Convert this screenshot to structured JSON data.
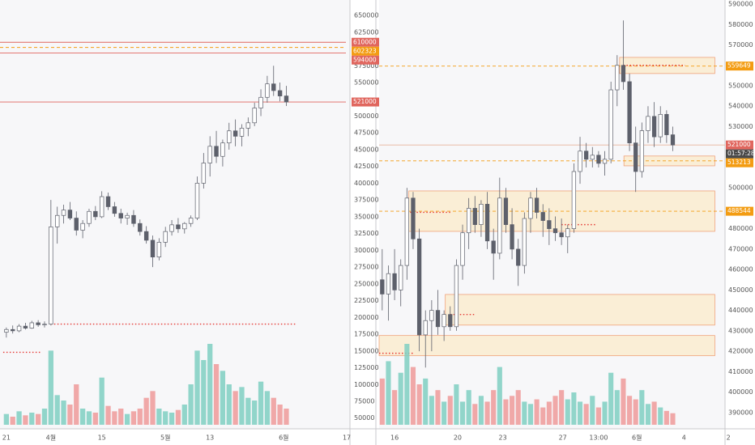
{
  "chart_data": [
    {
      "type": "candlestick",
      "x": [
        0,
        1,
        2,
        3,
        4,
        5,
        6,
        7,
        8,
        9,
        10,
        11,
        12,
        13,
        14,
        15,
        16,
        17,
        18,
        19,
        20,
        21,
        22,
        23,
        24,
        25,
        26,
        27,
        28,
        29,
        30,
        31,
        32,
        33,
        34,
        35,
        36,
        37,
        38,
        39,
        40,
        41,
        42,
        43,
        44
      ],
      "candles": [
        [
          178000,
          185000,
          170000,
          182000
        ],
        [
          182000,
          188000,
          176000,
          180000
        ],
        [
          180000,
          190000,
          178000,
          187000
        ],
        [
          187000,
          192000,
          182000,
          184000
        ],
        [
          184000,
          195000,
          183000,
          192000
        ],
        [
          192000,
          196000,
          186000,
          189000
        ],
        [
          189000,
          194000,
          185000,
          190000
        ],
        [
          190000,
          375000,
          188000,
          335000
        ],
        [
          335000,
          365000,
          310000,
          352000
        ],
        [
          352000,
          368000,
          340000,
          360000
        ],
        [
          360000,
          372000,
          345000,
          348000
        ],
        [
          348000,
          358000,
          322000,
          330000
        ],
        [
          330000,
          345000,
          318000,
          340000
        ],
        [
          340000,
          362000,
          335000,
          358000
        ],
        [
          358000,
          366000,
          345000,
          350000
        ],
        [
          350000,
          388000,
          348000,
          380000
        ],
        [
          380000,
          386000,
          360000,
          365000
        ],
        [
          365000,
          372000,
          350000,
          355000
        ],
        [
          355000,
          362000,
          340000,
          348000
        ],
        [
          348000,
          356000,
          338000,
          352000
        ],
        [
          352000,
          360000,
          335000,
          340000
        ],
        [
          340000,
          346000,
          322000,
          328000
        ],
        [
          328000,
          336000,
          310000,
          315000
        ],
        [
          315000,
          322000,
          275000,
          290000
        ],
        [
          290000,
          318000,
          285000,
          312000
        ],
        [
          312000,
          335000,
          305000,
          328000
        ],
        [
          328000,
          345000,
          322000,
          338000
        ],
        [
          338000,
          348000,
          326000,
          332000
        ],
        [
          332000,
          342000,
          325000,
          340000
        ],
        [
          340000,
          352000,
          335000,
          348000
        ],
        [
          348000,
          410000,
          345000,
          400000
        ],
        [
          400000,
          445000,
          392000,
          430000
        ],
        [
          430000,
          470000,
          410000,
          455000
        ],
        [
          455000,
          478000,
          430000,
          440000
        ],
        [
          440000,
          465000,
          425000,
          460000
        ],
        [
          460000,
          490000,
          450000,
          478000
        ],
        [
          478000,
          495000,
          455000,
          470000
        ],
        [
          470000,
          488000,
          455000,
          482000
        ],
        [
          482000,
          498000,
          470000,
          490000
        ],
        [
          490000,
          520000,
          485000,
          512000
        ],
        [
          512000,
          540000,
          500000,
          528000
        ],
        [
          528000,
          560000,
          520000,
          548000
        ],
        [
          548000,
          575000,
          530000,
          538000
        ],
        [
          538000,
          550000,
          522000,
          530000
        ],
        [
          530000,
          545000,
          515000,
          521000
        ]
      ],
      "volume": [
        8,
        6,
        10,
        7,
        9,
        8,
        12,
        55,
        22,
        18,
        15,
        30,
        12,
        10,
        9,
        35,
        14,
        10,
        12,
        8,
        10,
        12,
        20,
        25,
        12,
        10,
        9,
        11,
        15,
        30,
        55,
        48,
        60,
        45,
        40,
        30,
        25,
        28,
        20,
        18,
        32,
        25,
        20,
        15,
        12
      ],
      "xlim": [
        -1,
        54
      ],
      "ylim": [
        34000,
        673000
      ],
      "yticks": [
        650000,
        625000,
        575000,
        550000,
        500000,
        475000,
        450000,
        425000,
        400000,
        375000,
        350000,
        325000,
        300000,
        275000,
        250000,
        225000,
        200000,
        175000,
        150000,
        125000,
        100000,
        75000,
        50000
      ],
      "xticks": [
        {
          "value": 0,
          "label": "21"
        },
        {
          "value": 7,
          "label": "4월"
        },
        {
          "value": 15,
          "label": "15"
        },
        {
          "value": 25,
          "label": "5월"
        },
        {
          "value": 32,
          "label": "13"
        },
        {
          "value": 43.6,
          "label": "6월"
        },
        {
          "value": 53.5,
          "label": "17"
        }
      ],
      "price_tags": [
        {
          "value": 610000,
          "color": "#e0665e"
        },
        {
          "value": 602323,
          "color": "#f39c12"
        },
        {
          "value": 594000,
          "color": "#e0665e"
        },
        {
          "value": 521000,
          "color": "#e0665e"
        }
      ],
      "levels": [
        {
          "value": 610000,
          "color": "#e0665e",
          "style": "solid"
        },
        {
          "value": 602323,
          "color": "#f39c12",
          "style": "dashed"
        },
        {
          "value": 594000,
          "color": "#e0665e",
          "style": "solid"
        },
        {
          "value": 521000,
          "color": "#e0665e",
          "style": "solid"
        },
        {
          "value": 190000,
          "color": "#e53935",
          "style": "dotted",
          "from": 7,
          "to": 45.5
        },
        {
          "value": 148000,
          "color": "#e53935",
          "style": "dotted",
          "from": -0.5,
          "to": 5.5
        }
      ],
      "up_color": "#ffffff",
      "down_color": "#5d606b",
      "volume_up_color": "#7fcfc2",
      "volume_down_color": "#ef9a9a"
    },
    {
      "type": "candlestick",
      "x": [
        0,
        1,
        2,
        3,
        4,
        5,
        6,
        7,
        8,
        9,
        10,
        11,
        12,
        13,
        14,
        15,
        16,
        17,
        18,
        19,
        20,
        21,
        22,
        23,
        24,
        25,
        26,
        27,
        28,
        29,
        30,
        31,
        32,
        33,
        34,
        35,
        36,
        37,
        38,
        39,
        40,
        41,
        42,
        43,
        44,
        45,
        46,
        47
      ],
      "candles": [
        [
          455000,
          470000,
          440000,
          448000
        ],
        [
          448000,
          462000,
          435000,
          458000
        ],
        [
          458000,
          470000,
          445000,
          450000
        ],
        [
          450000,
          465000,
          442000,
          462000
        ],
        [
          462000,
          500000,
          455000,
          495000
        ],
        [
          495000,
          498000,
          470000,
          475000
        ],
        [
          475000,
          480000,
          420000,
          428000
        ],
        [
          428000,
          440000,
          412000,
          435000
        ],
        [
          435000,
          445000,
          420000,
          440000
        ],
        [
          440000,
          450000,
          428000,
          432000
        ],
        [
          432000,
          440000,
          425000,
          438000
        ],
        [
          438000,
          442000,
          430000,
          432000
        ],
        [
          432000,
          465000,
          430000,
          462000
        ],
        [
          462000,
          482000,
          455000,
          478000
        ],
        [
          478000,
          495000,
          470000,
          490000
        ],
        [
          490000,
          496000,
          478000,
          482000
        ],
        [
          482000,
          494000,
          476000,
          492000
        ],
        [
          492000,
          498000,
          470000,
          474000
        ],
        [
          474000,
          480000,
          455000,
          468000
        ],
        [
          468000,
          505000,
          465000,
          495000
        ],
        [
          495000,
          500000,
          478000,
          482000
        ],
        [
          482000,
          490000,
          465000,
          470000
        ],
        [
          470000,
          475000,
          452000,
          462000
        ],
        [
          462000,
          488000,
          458000,
          485000
        ],
        [
          485000,
          498000,
          478000,
          495000
        ],
        [
          495000,
          500000,
          485000,
          488000
        ],
        [
          488000,
          492000,
          476000,
          484000
        ],
        [
          484000,
          490000,
          472000,
          480000
        ],
        [
          480000,
          486000,
          474000,
          478000
        ],
        [
          478000,
          485000,
          472000,
          476000
        ],
        [
          476000,
          482000,
          468000,
          480000
        ],
        [
          480000,
          512000,
          478000,
          508000
        ],
        [
          508000,
          525000,
          502000,
          518000
        ],
        [
          518000,
          522000,
          510000,
          514000
        ],
        [
          514000,
          520000,
          510000,
          516000
        ],
        [
          516000,
          518000,
          510000,
          512000
        ],
        [
          512000,
          518000,
          506000,
          514000
        ],
        [
          514000,
          552000,
          512000,
          548000
        ],
        [
          548000,
          565000,
          540000,
          560000
        ],
        [
          560000,
          582000,
          548000,
          552000
        ],
        [
          552000,
          556000,
          518000,
          522000
        ],
        [
          522000,
          530000,
          498000,
          508000
        ],
        [
          508000,
          532000,
          505000,
          528000
        ],
        [
          528000,
          540000,
          522000,
          535000
        ],
        [
          535000,
          542000,
          520000,
          525000
        ],
        [
          525000,
          540000,
          522000,
          536000
        ],
        [
          536000,
          538000,
          522000,
          526000
        ],
        [
          526000,
          530000,
          518000,
          521000
        ]
      ],
      "volume": [
        40,
        55,
        30,
        45,
        70,
        50,
        35,
        40,
        25,
        30,
        20,
        25,
        35,
        20,
        30,
        18,
        25,
        20,
        30,
        50,
        22,
        25,
        30,
        20,
        18,
        22,
        15,
        20,
        25,
        30,
        22,
        28,
        20,
        18,
        25,
        15,
        20,
        45,
        30,
        40,
        25,
        22,
        30,
        18,
        20,
        15,
        12,
        10
      ],
      "xlim": [
        -0.5,
        56.5
      ],
      "ylim": [
        382000,
        592000
      ],
      "yticks": [
        590000,
        580000,
        570000,
        550000,
        540000,
        530000,
        500000,
        480000,
        470000,
        460000,
        450000,
        440000,
        430000,
        420000,
        410000,
        400000,
        390000
      ],
      "xticks": [
        {
          "value": 2,
          "label": "16"
        },
        {
          "value": 12.2,
          "label": "20"
        },
        {
          "value": 19.5,
          "label": "23"
        },
        {
          "value": 29.2,
          "label": "27"
        },
        {
          "value": 35,
          "label": "13:00"
        },
        {
          "value": 41.2,
          "label": "6월"
        },
        {
          "value": 48.8,
          "label": "4"
        },
        {
          "value": 56,
          "label": "2"
        }
      ],
      "price_tags": [
        {
          "value": 559649,
          "color": "#f39c12"
        },
        {
          "value": 521000,
          "color": "#e0665e"
        },
        {
          "value": 513213,
          "color": "#f39c12"
        },
        {
          "value": 488544,
          "color": "#f39c12"
        }
      ],
      "countdown": "01:57:28",
      "levels": [
        {
          "value": 559649,
          "color": "#f39c12",
          "style": "dashed"
        },
        {
          "value": 521000,
          "color": "#e8b49a",
          "style": "solid"
        },
        {
          "value": 513213,
          "color": "#f39c12",
          "style": "dashed"
        },
        {
          "value": 488544,
          "color": "#f39c12",
          "style": "dashed"
        },
        {
          "value": 560000,
          "color": "#e53935",
          "style": "dotted",
          "from": 39,
          "to": 49
        },
        {
          "value": 488000,
          "color": "#e53935",
          "style": "dotted",
          "from": 4,
          "to": 11
        },
        {
          "value": 482000,
          "color": "#e53935",
          "style": "dotted",
          "from": 29,
          "to": 34.5
        },
        {
          "value": 438000,
          "color": "#e53935",
          "style": "dotted",
          "from": 11,
          "to": 15
        },
        {
          "value": 419000,
          "color": "#e53935",
          "style": "dotted",
          "from": -0.5,
          "to": 5
        }
      ],
      "zones": [
        {
          "low": 556000,
          "high": 563900,
          "from": 38.4,
          "to": 53.8
        },
        {
          "low": 510800,
          "high": 515600,
          "from": 39.1,
          "to": 53.8
        },
        {
          "low": 478700,
          "high": 498500,
          "from": 4.3,
          "to": 53.8
        },
        {
          "low": 432800,
          "high": 447800,
          "from": 10.2,
          "to": 53.8
        },
        {
          "low": 417800,
          "high": 427700,
          "from": -0.5,
          "to": 53.8
        }
      ],
      "up_color": "#ffffff",
      "down_color": "#5d606b",
      "volume_up_color": "#7fcfc2",
      "volume_down_color": "#ef9a9a"
    }
  ]
}
